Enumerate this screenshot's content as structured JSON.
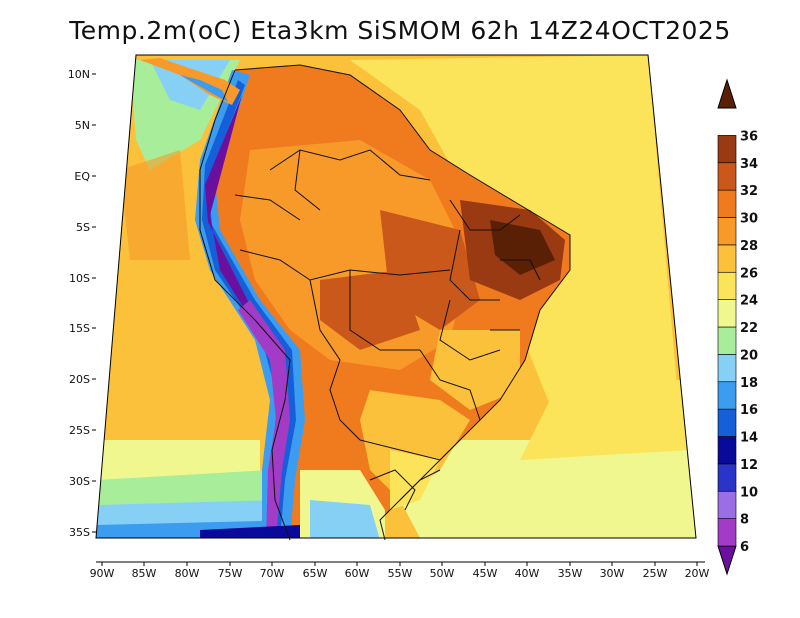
{
  "title": "Temp.2m(oC) Eta3km SiSMOM 62h 14Z24OCT2025",
  "map": {
    "variable": "Temp.2m(oC)",
    "model": "Eta3km",
    "system": "SiSMOM",
    "forecast_hour": "62h",
    "valid_time": "14Z24OCT2025",
    "lat_ticks": [
      "10N",
      "5N",
      "EQ",
      "5S",
      "10S",
      "15S",
      "20S",
      "25S",
      "30S",
      "35S"
    ],
    "lon_ticks": [
      "90W",
      "85W",
      "80W",
      "75W",
      "70W",
      "65W",
      "60W",
      "55W",
      "50W",
      "45W",
      "40W",
      "35W",
      "30W",
      "25W",
      "20W"
    ]
  },
  "colorbar": {
    "labels": [
      "6",
      "8",
      "10",
      "12",
      "14",
      "16",
      "18",
      "20",
      "22",
      "24",
      "26",
      "28",
      "30",
      "32",
      "34",
      "36"
    ],
    "colors": [
      "#6a0f9e",
      "#a23bc6",
      "#9b6ee6",
      "#2a34c8",
      "#0a0a9a",
      "#1560d8",
      "#3b9cf0",
      "#86d0f6",
      "#a8ee9a",
      "#f0f78e",
      "#fbe45a",
      "#fbc13a",
      "#f79a2a",
      "#f07a1e",
      "#c9581a",
      "#9a3a12",
      "#5a2006"
    ],
    "color_names": [
      "purple",
      "violet",
      "lavender",
      "royal-blue",
      "navy",
      "blue",
      "sky-blue",
      "light-cyan",
      "light-green",
      "pale-yellow",
      "yellow",
      "gold",
      "orange",
      "dark-orange",
      "rust",
      "brown",
      "dark-brown"
    ]
  }
}
